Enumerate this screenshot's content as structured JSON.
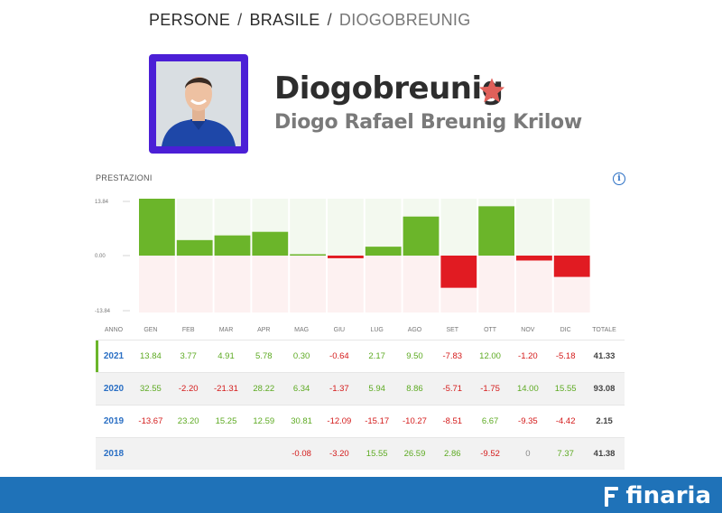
{
  "breadcrumb": {
    "items": [
      "PERSONE",
      "BRASILE",
      "DIOGOBREUNIG"
    ],
    "separator": "/"
  },
  "profile": {
    "username": "Diogobreunig",
    "full_name": "Diogo Rafael Breunig Krilow",
    "avatar_border_color": "#4b1fd6",
    "star_color": "#e0605a"
  },
  "performance": {
    "title": "PRESTAZIONI",
    "info_icon": "info-icon",
    "headers": [
      "ANNO",
      "GEN",
      "FEB",
      "MAR",
      "APR",
      "MAG",
      "GIU",
      "LUG",
      "AGO",
      "SET",
      "OTT",
      "NOV",
      "DIC",
      "TOTALE"
    ],
    "rows": [
      {
        "year": "2021",
        "values": [
          "13.84",
          "3.77",
          "4.91",
          "5.78",
          "0.30",
          "-0.64",
          "2.17",
          "9.50",
          "-7.83",
          "12.00",
          "-1.20",
          "-5.18"
        ],
        "total": "41.33"
      },
      {
        "year": "2020",
        "values": [
          "32.55",
          "-2.20",
          "-21.31",
          "28.22",
          "6.34",
          "-1.37",
          "5.94",
          "8.86",
          "-5.71",
          "-1.75",
          "14.00",
          "15.55"
        ],
        "total": "93.08"
      },
      {
        "year": "2019",
        "values": [
          "-13.67",
          "23.20",
          "15.25",
          "12.59",
          "30.81",
          "-12.09",
          "-15.17",
          "-10.27",
          "-8.51",
          "6.67",
          "-9.35",
          "-4.42"
        ],
        "total": "2.15"
      },
      {
        "year": "2018",
        "values": [
          "",
          "",
          "",
          "",
          "-0.08",
          "-3.20",
          "15.55",
          "26.59",
          "2.86",
          "-9.52",
          "0",
          "7.37"
        ],
        "total": "41.38"
      }
    ]
  },
  "chart_data": {
    "type": "bar",
    "categories": [
      "GEN",
      "FEB",
      "MAR",
      "APR",
      "MAG",
      "GIU",
      "LUG",
      "AGO",
      "SET",
      "OTT",
      "NOV",
      "DIC"
    ],
    "values": [
      13.84,
      3.77,
      4.91,
      5.78,
      0.3,
      -0.64,
      2.17,
      9.5,
      -7.83,
      12.0,
      -1.2,
      -5.18
    ],
    "ytick_labels": [
      "13.84",
      "0.00",
      "-13.84"
    ],
    "ylim": [
      -13.84,
      13.84
    ],
    "colors": {
      "positive": "#6bb52a",
      "negative": "#e11b22",
      "pos_bg": "#f3f9ef",
      "neg_bg": "#fdf1f1"
    }
  },
  "footer": {
    "brand": "finaria",
    "background": "#1f72b8"
  }
}
